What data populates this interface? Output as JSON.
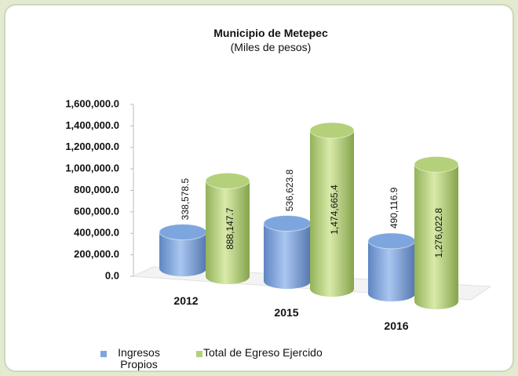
{
  "chart_data": {
    "type": "bar",
    "title": "Municipio de Metepec",
    "subtitle": "(Miles de pesos)",
    "categories": [
      "2012",
      "2015",
      "2016"
    ],
    "series": [
      {
        "name": "Ingresos Propios",
        "color": "#7ea6de",
        "values": [
          338578.5,
          536623.8,
          490116.9
        ],
        "value_labels": [
          "338,578.5",
          "536,623.8",
          "490,116.9"
        ]
      },
      {
        "name": "Total de Egreso Ejercido",
        "color": "#b5d07a",
        "values": [
          888147.7,
          1474665.4,
          1276022.8
        ],
        "value_labels": [
          "888,147.7",
          "1,474,665.4",
          "1,276,022.8"
        ]
      }
    ],
    "ylim": [
      0,
      1600000
    ],
    "yticks": [
      {
        "value": 0,
        "label": "0.0"
      },
      {
        "value": 200000,
        "label": "200,000.0"
      },
      {
        "value": 400000,
        "label": "400,000.0"
      },
      {
        "value": 600000,
        "label": "600,000.0"
      },
      {
        "value": 800000,
        "label": "800,000.0"
      },
      {
        "value": 1000000,
        "label": "1,000,000.0"
      },
      {
        "value": 1200000,
        "label": "1,200,000.0"
      },
      {
        "value": 1400000,
        "label": "1,400,000.0"
      },
      {
        "value": 1600000,
        "label": "1,600,000.0"
      }
    ]
  }
}
